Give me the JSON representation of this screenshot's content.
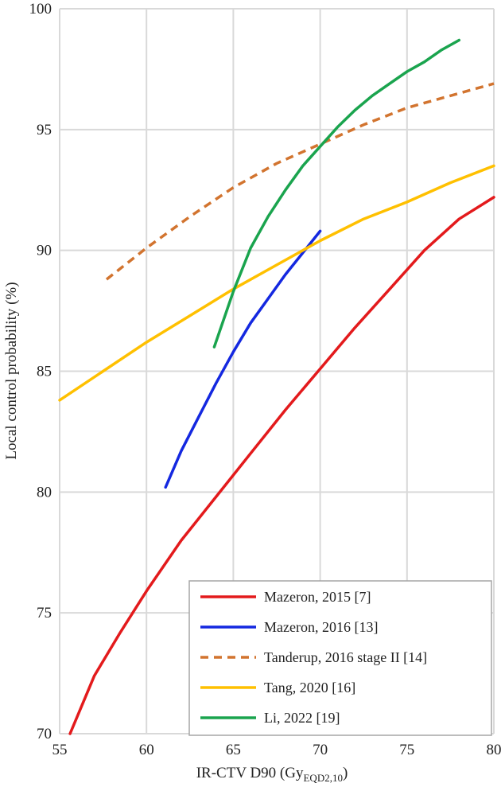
{
  "chart_data": {
    "type": "line",
    "title": "",
    "xlabel": "IR-CTV D90 (Gy",
    "xlabel_sub": "EQD2,10",
    "xlabel_end": ")",
    "ylabel": "Local control probability (%)",
    "xlim": [
      55,
      80
    ],
    "ylim": [
      70,
      100
    ],
    "xticks": [
      55,
      60,
      65,
      70,
      75,
      80
    ],
    "yticks": [
      70,
      75,
      80,
      85,
      90,
      95,
      100
    ],
    "grid": true,
    "legend_position": "bottom-right",
    "series": [
      {
        "name": "Mazeron, 2015 [7]",
        "color": "#e31a1c",
        "dash": "solid",
        "x": [
          55.6,
          57,
          58.5,
          60,
          62,
          64,
          66,
          68,
          70,
          72,
          74,
          76,
          78,
          80
        ],
        "y": [
          70.0,
          72.4,
          74.2,
          75.9,
          78.0,
          79.8,
          81.6,
          83.4,
          85.1,
          86.8,
          88.4,
          90.0,
          91.3,
          92.2
        ]
      },
      {
        "name": "Mazeron, 2016 [13]",
        "color": "#1428e0",
        "dash": "solid",
        "x": [
          61.1,
          62,
          63,
          64,
          65,
          66,
          67,
          68,
          69,
          70
        ],
        "y": [
          80.2,
          81.7,
          83.1,
          84.5,
          85.8,
          87.0,
          88.0,
          89.0,
          89.9,
          90.8
        ]
      },
      {
        "name": "Tanderup, 2016 stage II [14]",
        "color": "#d2742f",
        "dash": "dashed",
        "x": [
          57.7,
          60,
          62.5,
          65,
          67.5,
          70,
          72.5,
          75,
          77.5,
          80
        ],
        "y": [
          88.8,
          90.1,
          91.4,
          92.6,
          93.6,
          94.4,
          95.2,
          95.9,
          96.4,
          96.9
        ]
      },
      {
        "name": "Tang, 2020 [16]",
        "color": "#ffc000",
        "dash": "solid",
        "x": [
          55,
          57.5,
          60,
          62.5,
          65,
          67.5,
          70,
          72.5,
          75,
          77.5,
          80
        ],
        "y": [
          83.8,
          85.0,
          86.2,
          87.3,
          88.4,
          89.4,
          90.4,
          91.3,
          92.0,
          92.8,
          93.5
        ]
      },
      {
        "name": "Li, 2022 [19]",
        "color": "#1aa44e",
        "dash": "solid",
        "x": [
          63.9,
          65,
          66,
          67,
          68,
          69,
          70,
          71,
          72,
          73,
          74,
          75,
          76,
          77,
          78
        ],
        "y": [
          86.0,
          88.3,
          90.1,
          91.4,
          92.5,
          93.5,
          94.3,
          95.1,
          95.8,
          96.4,
          96.9,
          97.4,
          97.8,
          98.3,
          98.7
        ]
      }
    ]
  }
}
